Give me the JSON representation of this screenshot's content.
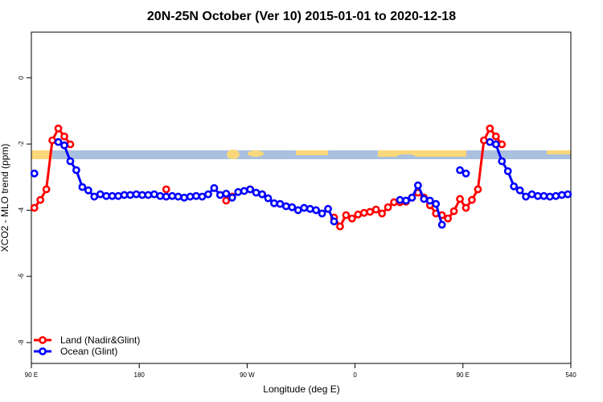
{
  "chart_data": {
    "type": "line",
    "title": "20N-25N October (Ver 10)   2015-01-01 to 2020-12-18",
    "x_label": "Longitude (deg E)",
    "y_label": "XCO2 - MLO trend (ppm)",
    "xlim": [
      90,
      540
    ],
    "xticks": [
      {
        "value": 90,
        "label": "90 E"
      },
      180,
      {
        "value": 270,
        "label": "90 W"
      },
      {
        "value": 360,
        "label": "0"
      },
      {
        "value": 450,
        "label": "90 E"
      },
      540
    ],
    "ylim": [
      -8.63,
      1.38
    ],
    "yticks": [
      0,
      -2,
      -4,
      -6,
      -8
    ],
    "legend": "bottomleft",
    "x": [
      92.5,
      97.5,
      102.5,
      107.5,
      112.5,
      117.5,
      122.5,
      127.5,
      132.5,
      137.5,
      142.5,
      147.5,
      152.5,
      157.5,
      162.5,
      167.5,
      172.5,
      177.5,
      182.5,
      187.5,
      192.5,
      197.5,
      202.5,
      207.5,
      212.5,
      217.5,
      222.5,
      227.5,
      232.5,
      237.5,
      242.5,
      247.5,
      252.5,
      257.5,
      262.5,
      267.5,
      272.5,
      277.5,
      282.5,
      287.5,
      292.5,
      297.5,
      302.5,
      307.5,
      312.5,
      317.5,
      322.5,
      327.5,
      332.5,
      337.5,
      342.5,
      347.5,
      352.5,
      357.5,
      362.5,
      367.5,
      372.5,
      377.5,
      382.5,
      387.5,
      392.5,
      397.5,
      402.5,
      407.5,
      412.5,
      417.5,
      422.5,
      427.5,
      432.5,
      437.5,
      442.5,
      447.5,
      452.5,
      457.5,
      462.5,
      467.5,
      472.5,
      477.5,
      482.5,
      487.5,
      492.5,
      497.5,
      502.5,
      507.5,
      512.5,
      517.5,
      522.5,
      527.5,
      532.5,
      537.5
    ],
    "series": [
      {
        "name": "Land (Nadir&Glint)",
        "color": "#ff0000",
        "values": [
          -3.93,
          -3.69,
          -3.37,
          -1.89,
          -1.53,
          -1.77,
          -2.01,
          null,
          null,
          null,
          null,
          null,
          null,
          null,
          null,
          null,
          null,
          null,
          null,
          null,
          null,
          null,
          -3.37,
          null,
          null,
          null,
          null,
          null,
          null,
          null,
          null,
          null,
          -3.71,
          -3.59,
          null,
          null,
          -3.37,
          null,
          -3.52,
          null,
          null,
          null,
          null,
          null,
          null,
          null,
          null,
          null,
          null,
          null,
          -4.22,
          -4.49,
          -4.15,
          -4.25,
          -4.13,
          -4.08,
          -4.05,
          -3.98,
          -4.1,
          -3.91,
          -3.76,
          -3.76,
          -3.74,
          -3.62,
          -3.47,
          -3.62,
          -3.85,
          -4.1,
          -4.15,
          -4.25,
          -4.03,
          -3.66,
          -3.93,
          -3.69,
          -3.37,
          -1.89,
          -1.53,
          -1.77,
          -2.01,
          null,
          null,
          null,
          null,
          null,
          null,
          null,
          null,
          null,
          null,
          null
        ]
      },
      {
        "name": "Ocean (Glint)",
        "color": "#0000ff",
        "values": [
          -2.89,
          null,
          null,
          null,
          -1.94,
          -2.04,
          -2.52,
          -2.79,
          -3.3,
          -3.4,
          -3.59,
          -3.52,
          -3.57,
          -3.57,
          -3.57,
          -3.54,
          -3.54,
          -3.52,
          -3.54,
          -3.54,
          -3.52,
          -3.57,
          -3.59,
          -3.57,
          -3.59,
          -3.62,
          -3.59,
          -3.57,
          -3.59,
          -3.52,
          -3.33,
          -3.54,
          -3.5,
          -3.62,
          -3.45,
          -3.42,
          -3.37,
          -3.47,
          -3.52,
          -3.64,
          -3.79,
          -3.81,
          -3.88,
          -3.91,
          -4.0,
          -3.93,
          -3.96,
          -4.0,
          -4.1,
          -3.96,
          -4.34,
          null,
          null,
          null,
          null,
          null,
          null,
          null,
          null,
          null,
          null,
          -3.69,
          -3.71,
          -3.62,
          -3.25,
          -3.66,
          -3.71,
          -3.81,
          -4.44,
          null,
          null,
          -2.79,
          -2.89,
          null,
          null,
          null,
          -1.94,
          -2.01,
          -2.52,
          -2.82,
          -3.28,
          -3.4,
          -3.59,
          -3.52,
          -3.57,
          -3.57,
          -3.59,
          -3.57,
          -3.54,
          -3.52
        ]
      }
    ]
  }
}
